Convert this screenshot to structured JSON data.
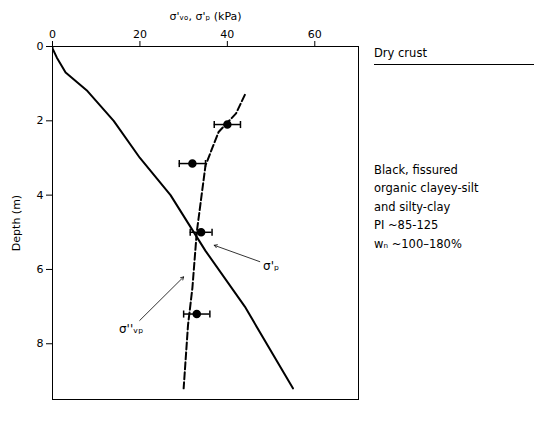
{
  "chart_data": {
    "type": "line",
    "title": "σ'ᵥₒ, σ'ₚ (kPa)",
    "ylabel": "Depth (m)",
    "xlim": [
      0,
      70
    ],
    "ylim": [
      9.5,
      0
    ],
    "xticks": [
      0,
      20,
      40,
      60
    ],
    "yticks": [
      0,
      2,
      4,
      6,
      8
    ],
    "series": [
      {
        "color": "black",
        "line_style": "solid",
        "x": [
          0,
          0,
          1,
          3,
          8,
          14,
          20,
          27,
          35,
          44,
          55
        ],
        "values": [
          0,
          0.05,
          0.3,
          0.7,
          1.2,
          2.0,
          3.0,
          4.0,
          5.5,
          7.0,
          9.2
        ]
      },
      {
        "color": "black",
        "line_style": "dashed",
        "x": [
          44,
          42,
          38,
          35,
          33,
          32,
          31,
          30
        ],
        "values": [
          1.3,
          1.8,
          2.3,
          3.2,
          5.0,
          6.5,
          7.5,
          9.2
        ]
      }
    ],
    "points": {
      "type": "scatter",
      "color": "black",
      "marker": "o",
      "x": [
        40,
        32,
        34,
        33
      ],
      "values": [
        2.1,
        3.15,
        5.0,
        7.2
      ],
      "xerr": [
        3,
        3,
        2.5,
        3
      ]
    },
    "annotations": [
      {
        "text": "σ''ᵥₚ",
        "x": 18,
        "y": 7.6,
        "arrow_x": 30,
        "arrow_y": 6.2
      },
      {
        "text": "σ'ₚ",
        "x": 50,
        "y": 5.9,
        "arrow_x": 37,
        "arrow_y": 5.35
      }
    ],
    "notes": {
      "heading": "Dry crust",
      "lines": [
        "Black, fissured",
        "organic clayey-silt",
        "and silty-clay",
        "PI ~85-125",
        "wₙ ~100–180%"
      ]
    }
  }
}
